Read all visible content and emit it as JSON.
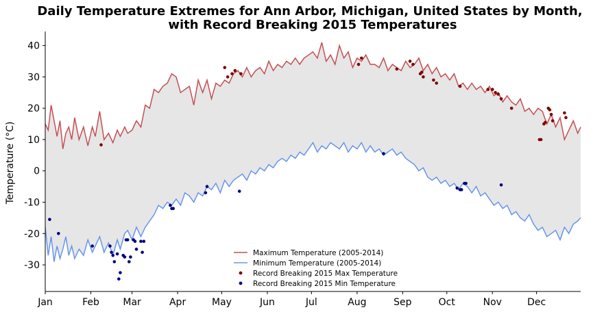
{
  "chart_data": {
    "type": "line",
    "title_line1": "Daily Temperature Extremes for Ann Arbor, Michigan, United States by Month,",
    "title_line2": "with Record Breaking 2015 Temperatures",
    "xlabel": "",
    "ylabel": "Temperature (°C)",
    "x_unit": "day of year",
    "xlim": [
      1,
      365
    ],
    "ylim": [
      -38.5,
      44.5
    ],
    "yticks": [
      -30,
      -20,
      -10,
      0,
      10,
      20,
      30,
      40
    ],
    "xticks": [
      {
        "day": 1,
        "label": "Jan"
      },
      {
        "day": 32,
        "label": "Feb"
      },
      {
        "day": 60,
        "label": "Mar"
      },
      {
        "day": 91,
        "label": "Apr"
      },
      {
        "day": 121,
        "label": "May"
      },
      {
        "day": 152,
        "label": "Jun"
      },
      {
        "day": 182,
        "label": "Jul"
      },
      {
        "day": 213,
        "label": "Aug"
      },
      {
        "day": 244,
        "label": "Sep"
      },
      {
        "day": 274,
        "label": "Oct"
      },
      {
        "day": 305,
        "label": "Nov"
      },
      {
        "day": 335,
        "label": "Dec"
      }
    ],
    "fill_between": {
      "color": "#e6e6e6"
    },
    "grid": false,
    "legend_position": "lower-center",
    "series": [
      {
        "name": "Maximum Temperature (2005-2014)",
        "kind": "line",
        "color": "#c44e52",
        "x": [
          1,
          3,
          5,
          7,
          9,
          11,
          13,
          15,
          17,
          19,
          21,
          24,
          27,
          30,
          33,
          35,
          38,
          41,
          44,
          47,
          50,
          52,
          55,
          57,
          60,
          63,
          66,
          69,
          72,
          75,
          78,
          81,
          84,
          87,
          90,
          93,
          96,
          99,
          102,
          105,
          108,
          111,
          114,
          117,
          120,
          123,
          126,
          129,
          132,
          135,
          138,
          141,
          144,
          147,
          150,
          153,
          156,
          159,
          162,
          165,
          168,
          171,
          174,
          177,
          180,
          183,
          186,
          189,
          192,
          195,
          198,
          201,
          204,
          207,
          210,
          213,
          216,
          219,
          222,
          225,
          228,
          231,
          234,
          237,
          240,
          243,
          246,
          249,
          252,
          255,
          258,
          261,
          264,
          267,
          270,
          273,
          276,
          279,
          282,
          285,
          288,
          291,
          294,
          297,
          300,
          303,
          306,
          309,
          312,
          315,
          318,
          321,
          324,
          327,
          330,
          333,
          336,
          339,
          342,
          345,
          348,
          351,
          354,
          357,
          360,
          363,
          365
        ],
        "y": [
          15,
          13,
          21,
          16,
          11,
          16,
          7,
          12,
          14,
          10,
          17,
          10,
          14,
          8,
          14,
          11,
          19,
          10,
          12,
          9,
          13,
          11,
          14,
          12,
          13,
          16,
          14,
          21,
          20,
          26,
          25,
          27,
          28,
          31,
          30,
          25,
          26,
          27,
          21,
          29,
          25,
          29,
          23,
          28,
          27,
          29,
          28,
          31,
          32,
          30,
          33,
          30,
          32,
          33,
          31,
          35,
          32,
          34,
          33,
          35,
          34,
          36,
          34,
          36,
          37,
          38,
          36,
          41,
          35,
          37,
          34,
          40,
          36,
          38,
          33,
          36,
          35,
          37,
          34,
          34,
          33,
          36,
          32,
          34,
          33,
          32,
          35,
          33,
          34,
          36,
          32,
          34,
          31,
          33,
          30,
          31,
          29,
          31,
          27,
          28,
          26,
          28,
          26,
          27,
          25,
          27,
          24,
          25,
          22,
          24,
          22,
          21,
          23,
          19,
          20,
          18,
          20,
          19,
          15,
          18,
          14,
          17,
          10,
          13,
          16,
          12,
          14
        ],
        "x_display_note": ""
      },
      {
        "name": "Minimum Temperature (2005-2014)",
        "kind": "line",
        "color": "#6495ed",
        "x": [
          1,
          3,
          5,
          7,
          9,
          11,
          13,
          15,
          17,
          19,
          21,
          24,
          27,
          30,
          33,
          35,
          38,
          41,
          44,
          47,
          50,
          52,
          55,
          57,
          60,
          63,
          66,
          69,
          72,
          75,
          78,
          81,
          84,
          87,
          90,
          93,
          96,
          99,
          102,
          105,
          108,
          111,
          114,
          117,
          120,
          123,
          126,
          129,
          132,
          135,
          138,
          141,
          144,
          147,
          150,
          153,
          156,
          159,
          162,
          165,
          168,
          171,
          174,
          177,
          180,
          183,
          186,
          189,
          192,
          195,
          198,
          201,
          204,
          207,
          210,
          213,
          216,
          219,
          222,
          225,
          228,
          231,
          234,
          237,
          240,
          243,
          246,
          249,
          252,
          255,
          258,
          261,
          264,
          267,
          270,
          273,
          276,
          279,
          282,
          285,
          288,
          291,
          294,
          297,
          300,
          303,
          306,
          309,
          312,
          315,
          318,
          321,
          324,
          327,
          330,
          333,
          336,
          339,
          342,
          345,
          348,
          351,
          354,
          357,
          360,
          363,
          365
        ],
        "y": [
          -18,
          -27,
          -21,
          -29,
          -24,
          -28,
          -25,
          -21,
          -27,
          -24,
          -28,
          -25,
          -27,
          -22,
          -26,
          -24,
          -21,
          -26,
          -23,
          -27,
          -22,
          -25,
          -20,
          -19,
          -22,
          -18,
          -21,
          -18,
          -16,
          -14,
          -11,
          -12,
          -10,
          -11,
          -9,
          -11,
          -7,
          -8,
          -10,
          -7,
          -8,
          -5,
          -6,
          -4,
          -7,
          -3,
          -5,
          -3,
          -2,
          -1,
          -3,
          0,
          -1,
          1,
          0,
          2,
          1,
          3,
          4,
          3,
          5,
          4,
          6,
          5,
          7,
          9,
          6,
          8,
          7,
          9,
          8,
          7,
          9,
          6,
          8,
          7,
          9,
          6,
          8,
          6,
          7,
          5,
          6,
          7,
          5,
          6,
          4,
          3,
          2,
          0,
          1,
          -2,
          -3,
          -2,
          -4,
          -3,
          -5,
          -4,
          -6,
          -4,
          -5,
          -7,
          -5,
          -8,
          -7,
          -9,
          -11,
          -10,
          -12,
          -11,
          -14,
          -13,
          -15,
          -16,
          -14,
          -17,
          -19,
          -18,
          -21,
          -20,
          -19,
          -22,
          -18,
          -20,
          -17,
          -16,
          -15
        ],
        "x_display_note": ""
      },
      {
        "name": "Record Breaking 2015 Max Temperature",
        "kind": "scatter",
        "color": "#800000",
        "x": [
          39,
          123,
          125,
          130,
          128,
          134,
          214,
          216,
          240,
          249,
          251,
          256,
          257,
          258,
          265,
          267,
          283,
          302,
          305,
          307,
          309,
          311,
          318,
          337,
          338,
          340,
          341,
          343,
          344,
          345,
          346,
          354,
          355
        ],
        "y": [
          8.3,
          33,
          30,
          32,
          31,
          31,
          34,
          36,
          32.5,
          35,
          34,
          31,
          31.5,
          30,
          29,
          28,
          27,
          26,
          26,
          25,
          24.5,
          23,
          20,
          10,
          10,
          15,
          15.5,
          20,
          19.5,
          18,
          16,
          18.5,
          17
        ]
      },
      {
        "name": "Record Breaking 2015 Min Temperature",
        "kind": "scatter",
        "color": "#000080",
        "x": [
          4,
          10,
          33,
          45,
          46,
          47,
          48,
          50,
          51,
          52,
          54,
          55,
          56,
          57,
          58,
          59,
          61,
          62,
          63,
          66,
          67,
          68,
          86,
          87,
          88,
          110,
          111,
          133,
          231,
          281,
          283,
          284,
          286,
          287,
          311
        ],
        "y": [
          -15.5,
          -20,
          -24,
          -24,
          -26,
          -27,
          -29,
          -26.5,
          -34.5,
          -32.5,
          -27,
          -27.5,
          -22,
          -22,
          -29,
          -27.5,
          -22,
          -22.5,
          -25,
          -22.5,
          -26,
          -22.5,
          -11,
          -12,
          -12,
          -7,
          -5,
          -6.5,
          5.5,
          -5.5,
          -6,
          -6,
          -4,
          -4,
          -4.5
        ]
      }
    ]
  }
}
